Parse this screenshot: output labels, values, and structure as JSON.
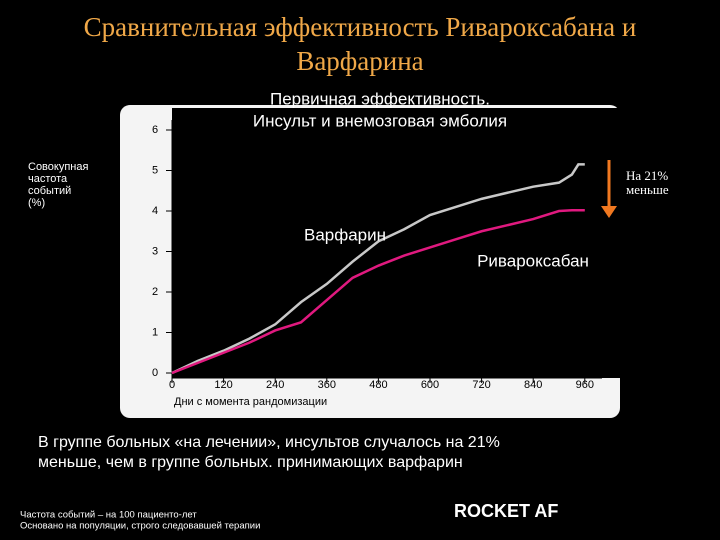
{
  "slide": {
    "title": [
      "Сравнительная эффективность Ривароксабана и",
      "Варфарина"
    ],
    "summary": [
      "В группе больных «на лечении», инсультов случалось на 21%",
      "меньше, чем в группе больных. принимающих варфарин"
    ],
    "footnotes": [
      "Частота событий – на 100 пациенто-лет",
      "Основано на популяции, строго следовавшей терапии"
    ],
    "logo": "ROCKET AF"
  },
  "chart_data": {
    "type": "line",
    "title": [
      "Первичная эффективность.",
      "Инсульт и внемозговая эмболия"
    ],
    "y_label": [
      "Совокупная",
      "частота",
      "событий",
      "(%)"
    ],
    "x_label": "Дни с момента рандомизации",
    "x": [
      0,
      60,
      120,
      180,
      240,
      300,
      360,
      420,
      480,
      540,
      600,
      660,
      720,
      780,
      840,
      900,
      930,
      945,
      960
    ],
    "series": [
      {
        "name": "Варфарин",
        "color": "#c8c8c8",
        "values": [
          0,
          0.3,
          0.55,
          0.85,
          1.2,
          1.75,
          2.2,
          2.75,
          3.25,
          3.55,
          3.9,
          4.1,
          4.3,
          4.45,
          4.6,
          4.7,
          4.9,
          5.15,
          5.15
        ]
      },
      {
        "name": "Ривароксабан",
        "color": "#e0197f",
        "values": [
          0,
          0.25,
          0.5,
          0.75,
          1.05,
          1.25,
          1.8,
          2.35,
          2.65,
          2.9,
          3.1,
          3.3,
          3.5,
          3.65,
          3.8,
          4.0,
          4.02,
          4.02,
          4.02
        ]
      }
    ],
    "annotation": [
      "На 21%",
      "меньше"
    ],
    "xlim": [
      0,
      1000
    ],
    "ylim": [
      0,
      6
    ],
    "xticks": [
      0,
      120,
      240,
      360,
      480,
      600,
      720,
      840,
      960
    ],
    "yticks": [
      0,
      1,
      2,
      3,
      4,
      5,
      6
    ]
  }
}
